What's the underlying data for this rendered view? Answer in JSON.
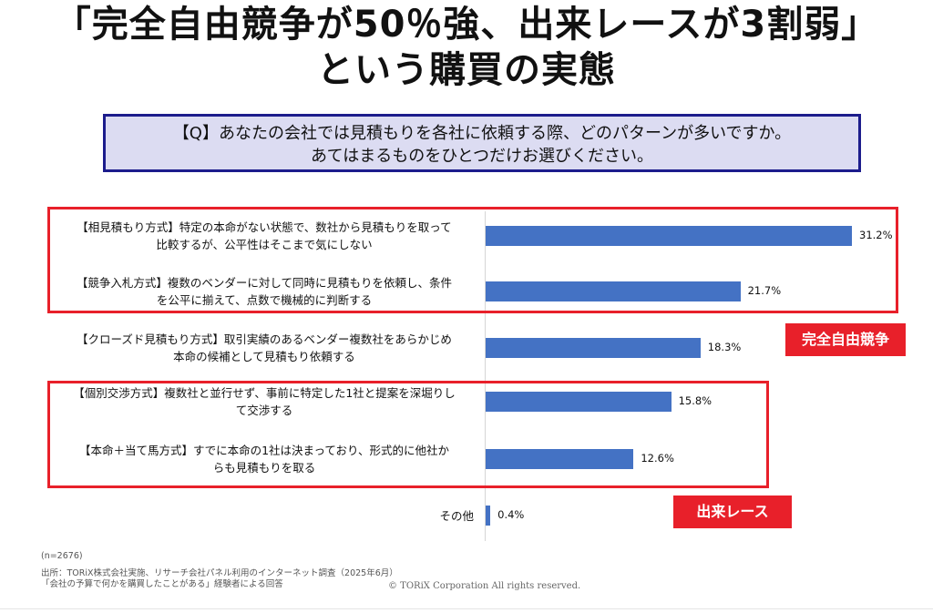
{
  "title_line1": "「完全自由競争が50％強、出来レースが3割弱」",
  "title_line2": "という購買の実態",
  "question_line1": "【Q】あなたの会社では見積もりを各社に依頼する際、どのパターンが多いですか。",
  "question_line2": "あてはまるものをひとつだけお選びください。",
  "chart_data": {
    "type": "bar",
    "orientation": "horizontal",
    "categories": [
      [
        "【相見積もり方式】特定の本命がない状態で、数社から見積もりを取って",
        "比較するが、公平性はそこまで気にしない"
      ],
      [
        "【競争入札方式】複数のベンダーに対して同時に見積もりを依頼し、条件",
        "を公平に揃えて、点数で機械的に判断する"
      ],
      [
        "【クローズド見積もり方式】取引実績のあるベンダー複数社をあらかじめ",
        "本命の候補として見積もり依頼する"
      ],
      [
        "【個別交渉方式】複数社と並行せず、事前に特定した1社と提案を深堀りし",
        "て交渉する"
      ],
      [
        "【本命＋当て馬方式】すでに本命の1社は決まっており、形式的に他社か",
        "らも見積もりを取る"
      ],
      [
        "その他"
      ]
    ],
    "values": [
      31.2,
      21.7,
      18.3,
      15.8,
      12.6,
      0.4
    ],
    "value_labels": [
      "31.2%",
      "21.7%",
      "18.3%",
      "15.8%",
      "12.6%",
      "0.4%"
    ],
    "bar_color": "#4472c4",
    "xlim": [
      0,
      40
    ],
    "grid": false,
    "groups": [
      {
        "label": "完全自由競争",
        "color": "#e8202a"
      },
      {
        "label": "出来レース",
        "color": "#e8202a"
      }
    ]
  },
  "footnotes": [
    "(n=2676)",
    "出所：TORiX株式会社実施、リサーチ会社パネル利用のインターネット調査（2025年6月）",
    "「会社の予算で何かを購買したことがある」経験者による回答"
  ],
  "copyright": "© TORiX Corporation All rights reserved."
}
